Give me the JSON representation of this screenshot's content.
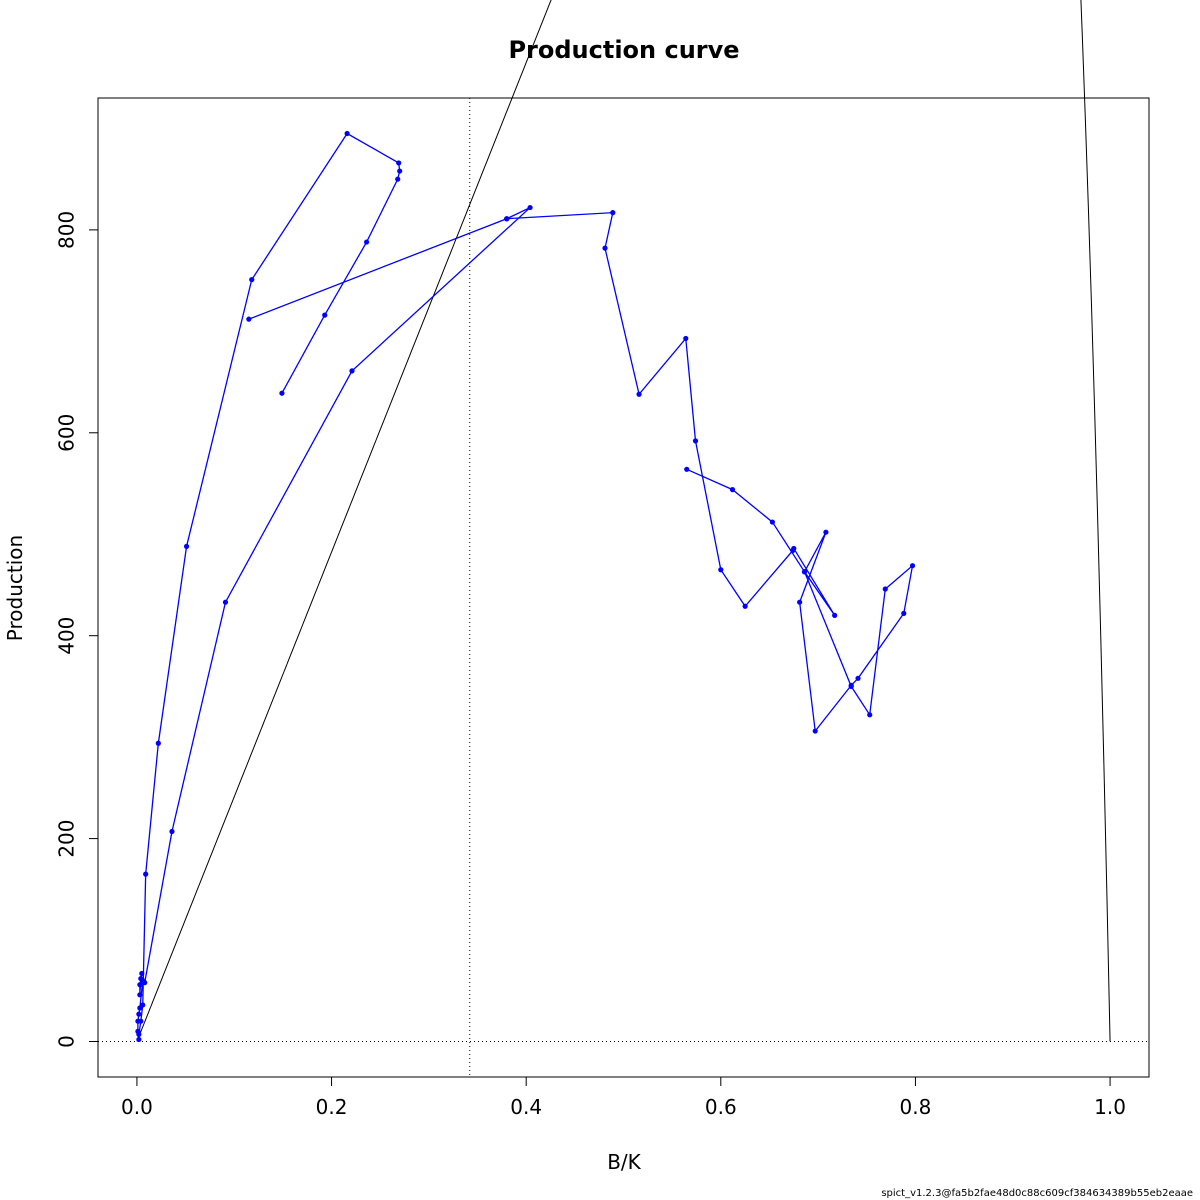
{
  "chart_data": {
    "type": "line",
    "title": "Production curve",
    "xlabel": "B/K",
    "ylabel": "Production",
    "xlim": [
      -0.04,
      1.04
    ],
    "ylim": [
      -35,
      930
    ],
    "x_ticks": [
      "0.0",
      "0.2",
      "0.4",
      "0.6",
      "0.8",
      "1.0"
    ],
    "y_ticks": [
      "0",
      "200",
      "400",
      "600",
      "800"
    ],
    "reference_lines": {
      "vertical_x": 0.342,
      "horizontal_y": 0
    },
    "theoretical_curve": {
      "peak_x": 0.342,
      "peak_y": 825,
      "end_x": 1.0,
      "color": "#000000"
    },
    "series": [
      {
        "color": "#0000ff",
        "points": [
          [
            0.005,
            67
          ],
          [
            0.003,
            56
          ],
          [
            0.003,
            46
          ],
          [
            0.004,
            62
          ],
          [
            0.006,
            60
          ],
          [
            0.003,
            33
          ],
          [
            0.002,
            27
          ],
          [
            0.001,
            20
          ],
          [
            0.001,
            10
          ],
          [
            0.002,
            2
          ],
          [
            0.002,
            7
          ],
          [
            0.004,
            20
          ],
          [
            0.006,
            36
          ],
          [
            0.009,
            165
          ],
          [
            0.022,
            294
          ],
          [
            0.051,
            488
          ],
          [
            0.118,
            751
          ],
          [
            0.216,
            895
          ],
          [
            0.269,
            866
          ],
          [
            0.27,
            858
          ],
          [
            0.268,
            850
          ],
          [
            0.236,
            788
          ],
          [
            0.193,
            716
          ],
          [
            0.149,
            639
          ]
        ]
      },
      {
        "color": "#0000ff",
        "points": [
          [
            0.008,
            58
          ],
          [
            0.036,
            207
          ],
          [
            0.091,
            433
          ],
          [
            0.221,
            661
          ],
          [
            0.404,
            822
          ],
          [
            0.38,
            811
          ],
          [
            0.115,
            712
          ]
        ]
      },
      {
        "color": "#0000ff",
        "points": [
          [
            0.38,
            811
          ],
          [
            0.489,
            817
          ],
          [
            0.481,
            782
          ],
          [
            0.516,
            638
          ],
          [
            0.564,
            693
          ],
          [
            0.574,
            592
          ],
          [
            0.6,
            465
          ],
          [
            0.625,
            429
          ],
          [
            0.674,
            484
          ],
          [
            0.675,
            486
          ],
          [
            0.717,
            420
          ],
          [
            0.686,
            463
          ],
          [
            0.708,
            502
          ],
          [
            0.681,
            433
          ],
          [
            0.697,
            306
          ],
          [
            0.734,
            351
          ],
          [
            0.741,
            358
          ],
          [
            0.788,
            422
          ],
          [
            0.797,
            469
          ],
          [
            0.769,
            446
          ],
          [
            0.753,
            322
          ],
          [
            0.734,
            350
          ],
          [
            0.686,
            463
          ],
          [
            0.653,
            512
          ],
          [
            0.612,
            544
          ],
          [
            0.565,
            564
          ]
        ]
      }
    ],
    "grid": false,
    "footer": "spict_v1.2.3@fa5b2fae48d0c88c609cf384634389b55eb2eaae"
  }
}
